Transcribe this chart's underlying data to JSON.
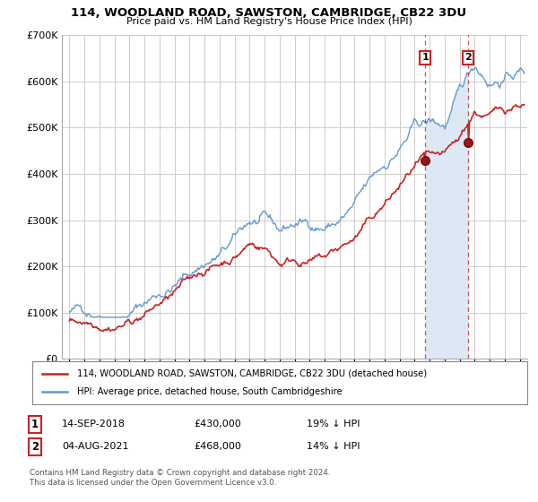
{
  "title": "114, WOODLAND ROAD, SAWSTON, CAMBRIDGE, CB22 3DU",
  "subtitle": "Price paid vs. HM Land Registry's House Price Index (HPI)",
  "legend_line1": "114, WOODLAND ROAD, SAWSTON, CAMBRIDGE, CB22 3DU (detached house)",
  "legend_line2": "HPI: Average price, detached house, South Cambridgeshire",
  "footnote": "Contains HM Land Registry data © Crown copyright and database right 2024.\nThis data is licensed under the Open Government Licence v3.0.",
  "sale1_date": "14-SEP-2018",
  "sale1_price": "£430,000",
  "sale1_hpi": "19% ↓ HPI",
  "sale2_date": "04-AUG-2021",
  "sale2_price": "£468,000",
  "sale2_hpi": "14% ↓ HPI",
  "sale1_year": 2018.71,
  "sale1_value": 430000,
  "sale2_year": 2021.58,
  "sale2_value": 468000,
  "hpi_color": "#6699cc",
  "price_color": "#cc2222",
  "shade_color": "#dce9f5",
  "vline_color": "#cc3333",
  "background_color": "#ffffff",
  "grid_color": "#cccccc",
  "ylim": [
    0,
    700000
  ],
  "yticks": [
    0,
    100000,
    200000,
    300000,
    400000,
    500000,
    600000,
    700000
  ],
  "xlim_start": 1994.5,
  "xlim_end": 2025.5,
  "seed": 42
}
